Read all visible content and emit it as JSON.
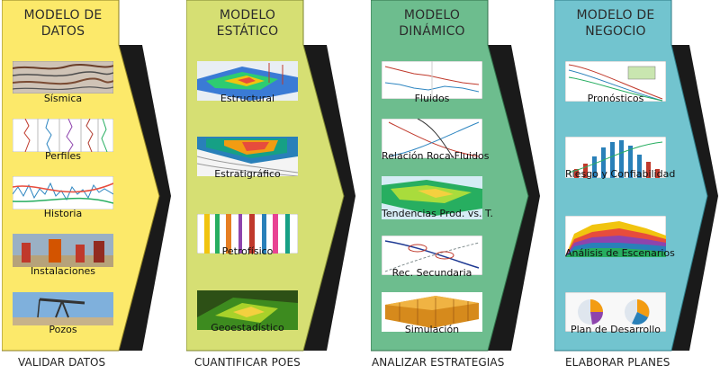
{
  "columns": [
    {
      "title_line1": "MODELO DE",
      "title_line2": "DATOS",
      "footer": "VALIDAR DATOS",
      "fill": "#fce96a",
      "tiles": [
        "Sísmica",
        "Perfiles",
        "Historia",
        "Instalaciones",
        "Pozos"
      ]
    },
    {
      "title_line1": "MODELO",
      "title_line2": "ESTÁTICO",
      "footer": "CUANTIFICAR POES",
      "fill": "#d6df73",
      "tiles": [
        "Estructural",
        "Estratigráfico",
        "Petrofísico",
        "Geoestadístico"
      ]
    },
    {
      "title_line1": "MODELO",
      "title_line2": "DINÁMICO",
      "footer": "ANALIZAR ESTRATEGIAS",
      "fill": "#6dbd8e",
      "tiles": [
        "Fluidos",
        "Relación Roca-Fluidos",
        "Tendencias  Prod. vs. T.",
        "Rec. Secundaria",
        "Simulación"
      ]
    },
    {
      "title_line1": "MODELO DE",
      "title_line2": "NEGOCIO",
      "footer": "ELABORAR PLANES",
      "fill": "#72c4cf",
      "tiles": [
        "Pronósticos",
        "Riesgo y Confiabilidad",
        "Análisis de Escenarios",
        "Plan de Desarrollo"
      ]
    }
  ]
}
